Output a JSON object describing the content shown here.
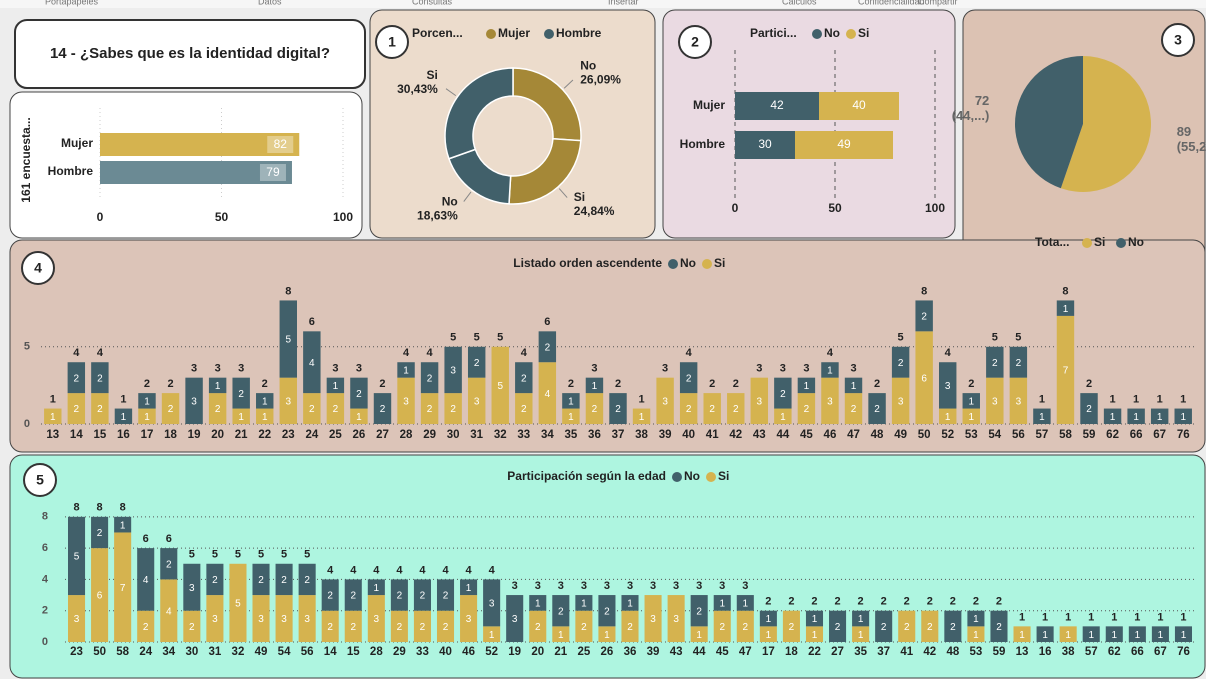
{
  "ribbon": [
    "Portapapeles",
    "Datos",
    "Consultas",
    "Insertar",
    "Cálculos",
    "Confidencialidad",
    "Compartir"
  ],
  "header": {
    "title": "14 - ¿Sabes que es la identidad digital?"
  },
  "chart_data": [
    {
      "type": "hbar",
      "ylabel": "161 encuesta...",
      "categories": [
        "Mujer",
        "Hombre"
      ],
      "values": [
        82,
        79
      ],
      "colors": [
        "#d5b34f",
        "#6b8a94"
      ],
      "xlim": [
        0,
        100
      ],
      "xticks": [
        0,
        50,
        100
      ],
      "grid": true
    },
    {
      "type": "donut",
      "badge": "1",
      "title": "Porcen...",
      "legend": [
        {
          "name": "Mujer",
          "color": "#a58837"
        },
        {
          "name": "Hombre",
          "color": "#41606a"
        }
      ],
      "categories": [
        "No",
        "Si",
        "No",
        "Si"
      ],
      "values": [
        26.09,
        24.84,
        18.63,
        30.43
      ],
      "value_labels": [
        "26,09%",
        "24,84%",
        "18,63%",
        "30,43%"
      ],
      "colors": [
        "#a58837",
        "#a58837",
        "#41606a",
        "#41606a"
      ]
    },
    {
      "type": "stacked_hbar",
      "badge": "2",
      "title": "Partici...",
      "categories": [
        "Mujer",
        "Hombre"
      ],
      "series": [
        {
          "name": "No",
          "color": "#41606a",
          "values": [
            42,
            30
          ]
        },
        {
          "name": "Si",
          "color": "#d5b34f",
          "values": [
            40,
            49
          ]
        }
      ],
      "xlim": [
        0,
        100
      ],
      "xticks": [
        0,
        50,
        100
      ],
      "grid": true
    },
    {
      "type": "pie",
      "badge": "3",
      "title": "Tota...",
      "categories": [
        "Si",
        "No"
      ],
      "values": [
        89,
        72
      ],
      "percent_labels": [
        "(55,2...)",
        "(44,...)"
      ],
      "colors": [
        "#d5b34f",
        "#41606a"
      ]
    },
    {
      "type": "stacked_bar",
      "badge": "4",
      "title": "Listado orden ascendente",
      "categories": [
        "13",
        "14",
        "15",
        "16",
        "17",
        "18",
        "19",
        "20",
        "21",
        "22",
        "23",
        "24",
        "25",
        "26",
        "27",
        "28",
        "29",
        "30",
        "31",
        "32",
        "33",
        "34",
        "35",
        "36",
        "37",
        "38",
        "39",
        "40",
        "41",
        "42",
        "43",
        "44",
        "45",
        "46",
        "47",
        "48",
        "49",
        "50",
        "52",
        "53",
        "54",
        "56",
        "57",
        "58",
        "59",
        "62",
        "66",
        "67",
        "76"
      ],
      "series": [
        {
          "name": "No",
          "color": "#41606a",
          "values": [
            null,
            2,
            2,
            1,
            1,
            null,
            3,
            1,
            2,
            1,
            5,
            4,
            1,
            2,
            2,
            1,
            2,
            3,
            2,
            null,
            2,
            2,
            1,
            1,
            2,
            null,
            null,
            2,
            null,
            null,
            null,
            2,
            1,
            1,
            1,
            2,
            2,
            2,
            3,
            1,
            2,
            2,
            1,
            1,
            2,
            1,
            1,
            1,
            1
          ]
        },
        {
          "name": "Si",
          "color": "#d5b34f",
          "values": [
            1,
            2,
            2,
            null,
            1,
            2,
            null,
            2,
            1,
            1,
            3,
            2,
            2,
            1,
            null,
            3,
            2,
            2,
            3,
            5,
            2,
            4,
            1,
            2,
            null,
            1,
            3,
            2,
            2,
            2,
            3,
            1,
            2,
            3,
            2,
            null,
            3,
            6,
            1,
            1,
            3,
            3,
            null,
            7,
            null,
            null,
            null,
            null,
            null
          ]
        }
      ],
      "totals": [
        1,
        4,
        4,
        1,
        2,
        2,
        3,
        3,
        3,
        2,
        8,
        6,
        3,
        3,
        2,
        4,
        4,
        5,
        5,
        5,
        4,
        6,
        2,
        3,
        2,
        1,
        3,
        4,
        2,
        2,
        3,
        3,
        3,
        4,
        3,
        2,
        5,
        8,
        4,
        2,
        5,
        5,
        1,
        8,
        2,
        1,
        1,
        1,
        1
      ],
      "ylim": [
        0,
        9
      ],
      "yticks": [
        0,
        5
      ],
      "grid": true
    },
    {
      "type": "stacked_bar",
      "badge": "5",
      "title": "Participación según la edad",
      "categories": [
        "23",
        "50",
        "58",
        "24",
        "34",
        "30",
        "31",
        "32",
        "49",
        "54",
        "56",
        "14",
        "15",
        "28",
        "29",
        "33",
        "40",
        "46",
        "52",
        "19",
        "20",
        "21",
        "25",
        "26",
        "36",
        "39",
        "43",
        "44",
        "45",
        "47",
        "17",
        "18",
        "22",
        "27",
        "35",
        "37",
        "41",
        "42",
        "48",
        "53",
        "59",
        "13",
        "16",
        "38",
        "57",
        "62",
        "66",
        "67",
        "76"
      ],
      "series": [
        {
          "name": "No",
          "color": "#41606a",
          "values": [
            5,
            2,
            1,
            4,
            2,
            3,
            2,
            null,
            2,
            2,
            2,
            2,
            2,
            1,
            2,
            2,
            2,
            1,
            3,
            3,
            1,
            2,
            1,
            2,
            1,
            null,
            null,
            2,
            1,
            1,
            1,
            null,
            1,
            2,
            1,
            2,
            null,
            null,
            2,
            1,
            2,
            null,
            1,
            null,
            1,
            1,
            1,
            1,
            1
          ]
        },
        {
          "name": "Si",
          "color": "#d5b34f",
          "values": [
            3,
            6,
            7,
            2,
            4,
            2,
            3,
            5,
            3,
            3,
            3,
            2,
            2,
            3,
            2,
            2,
            2,
            3,
            1,
            null,
            2,
            1,
            2,
            1,
            2,
            3,
            3,
            1,
            2,
            2,
            1,
            2,
            1,
            null,
            1,
            null,
            2,
            2,
            null,
            1,
            null,
            1,
            null,
            1,
            null,
            null,
            null,
            null,
            null
          ]
        }
      ],
      "totals": [
        8,
        8,
        8,
        6,
        6,
        5,
        5,
        5,
        5,
        5,
        5,
        4,
        4,
        4,
        4,
        4,
        4,
        4,
        4,
        3,
        3,
        3,
        3,
        3,
        3,
        3,
        3,
        3,
        3,
        3,
        2,
        2,
        2,
        2,
        2,
        2,
        2,
        2,
        2,
        2,
        2,
        1,
        1,
        1,
        1,
        1,
        1,
        1,
        1
      ],
      "ylim": [
        0,
        8.5
      ],
      "yticks": [
        0,
        2,
        4,
        6,
        8
      ],
      "grid": true
    }
  ]
}
